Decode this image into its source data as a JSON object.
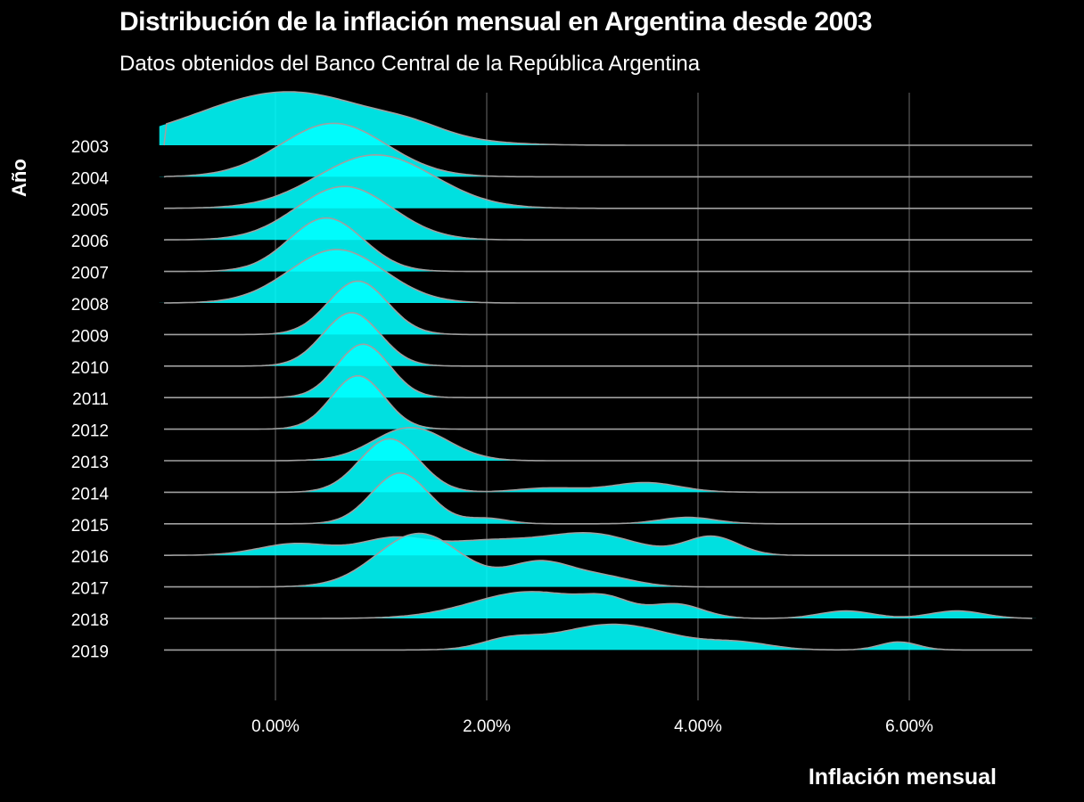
{
  "chart_data": {
    "type": "ridgeline",
    "title": "Distribución de la inflación mensual en Argentina desde 2003",
    "subtitle": "Datos obtenidos del Banco Central de la República Argentina",
    "xlabel": "Inflación mensual",
    "ylabel": "Año",
    "xlim": [
      -0.011,
      0.072
    ],
    "x_ticks": [
      0,
      0.02,
      0.04,
      0.06
    ],
    "x_tick_labels": [
      "0.00%",
      "2.00%",
      "4.00%",
      "6.00%"
    ],
    "grid": "vertical",
    "fill_color": "#00FFFF",
    "outline_color": "#A0A0A0",
    "background_color": "#000000",
    "series": [
      {
        "name": "2003",
        "peaks": [
          [
            0.0012,
            0.0085,
            1.0
          ],
          [
            0.013,
            0.003,
            0.12
          ]
        ]
      },
      {
        "name": "2004",
        "peaks": [
          [
            0.0055,
            0.005,
            1.0
          ]
        ]
      },
      {
        "name": "2005",
        "peaks": [
          [
            0.0095,
            0.0055,
            1.0
          ]
        ]
      },
      {
        "name": "2006",
        "peaks": [
          [
            0.0065,
            0.0045,
            1.0
          ]
        ]
      },
      {
        "name": "2007",
        "peaks": [
          [
            0.0048,
            0.0035,
            1.0
          ]
        ]
      },
      {
        "name": "2008",
        "peaks": [
          [
            0.0058,
            0.0045,
            1.0
          ]
        ]
      },
      {
        "name": "2009",
        "peaks": [
          [
            0.0078,
            0.0028,
            1.0
          ]
        ]
      },
      {
        "name": "2010",
        "peaks": [
          [
            0.0072,
            0.0027,
            1.0
          ]
        ]
      },
      {
        "name": "2011",
        "peaks": [
          [
            0.0083,
            0.0025,
            1.0
          ]
        ]
      },
      {
        "name": "2012",
        "peaks": [
          [
            0.0078,
            0.0025,
            1.0
          ]
        ]
      },
      {
        "name": "2013",
        "peaks": [
          [
            0.0128,
            0.0035,
            0.62
          ]
        ]
      },
      {
        "name": "2014",
        "peaks": [
          [
            0.0108,
            0.0028,
            1.0
          ],
          [
            0.026,
            0.003,
            0.08
          ],
          [
            0.035,
            0.0032,
            0.18
          ]
        ]
      },
      {
        "name": "2015",
        "peaks": [
          [
            0.0118,
            0.0027,
            0.95
          ],
          [
            0.02,
            0.002,
            0.1
          ],
          [
            0.039,
            0.0026,
            0.12
          ]
        ]
      },
      {
        "name": "2016",
        "peaks": [
          [
            0.002,
            0.0035,
            0.22
          ],
          [
            0.011,
            0.003,
            0.28
          ],
          [
            0.02,
            0.005,
            0.27
          ],
          [
            0.03,
            0.0042,
            0.38
          ],
          [
            0.0413,
            0.0025,
            0.35
          ]
        ]
      },
      {
        "name": "2017",
        "peaks": [
          [
            0.0136,
            0.004,
            1.0
          ],
          [
            0.025,
            0.003,
            0.45
          ],
          [
            0.031,
            0.003,
            0.18
          ]
        ]
      },
      {
        "name": "2018",
        "peaks": [
          [
            0.0242,
            0.0055,
            0.5
          ],
          [
            0.0315,
            0.0022,
            0.22
          ],
          [
            0.038,
            0.0025,
            0.25
          ],
          [
            0.054,
            0.0025,
            0.14
          ],
          [
            0.0645,
            0.0025,
            0.14
          ]
        ]
      },
      {
        "name": "2019",
        "peaks": [
          [
            0.022,
            0.0025,
            0.16
          ],
          [
            0.032,
            0.0055,
            0.48
          ],
          [
            0.044,
            0.003,
            0.12
          ],
          [
            0.059,
            0.0018,
            0.15
          ]
        ]
      }
    ]
  }
}
